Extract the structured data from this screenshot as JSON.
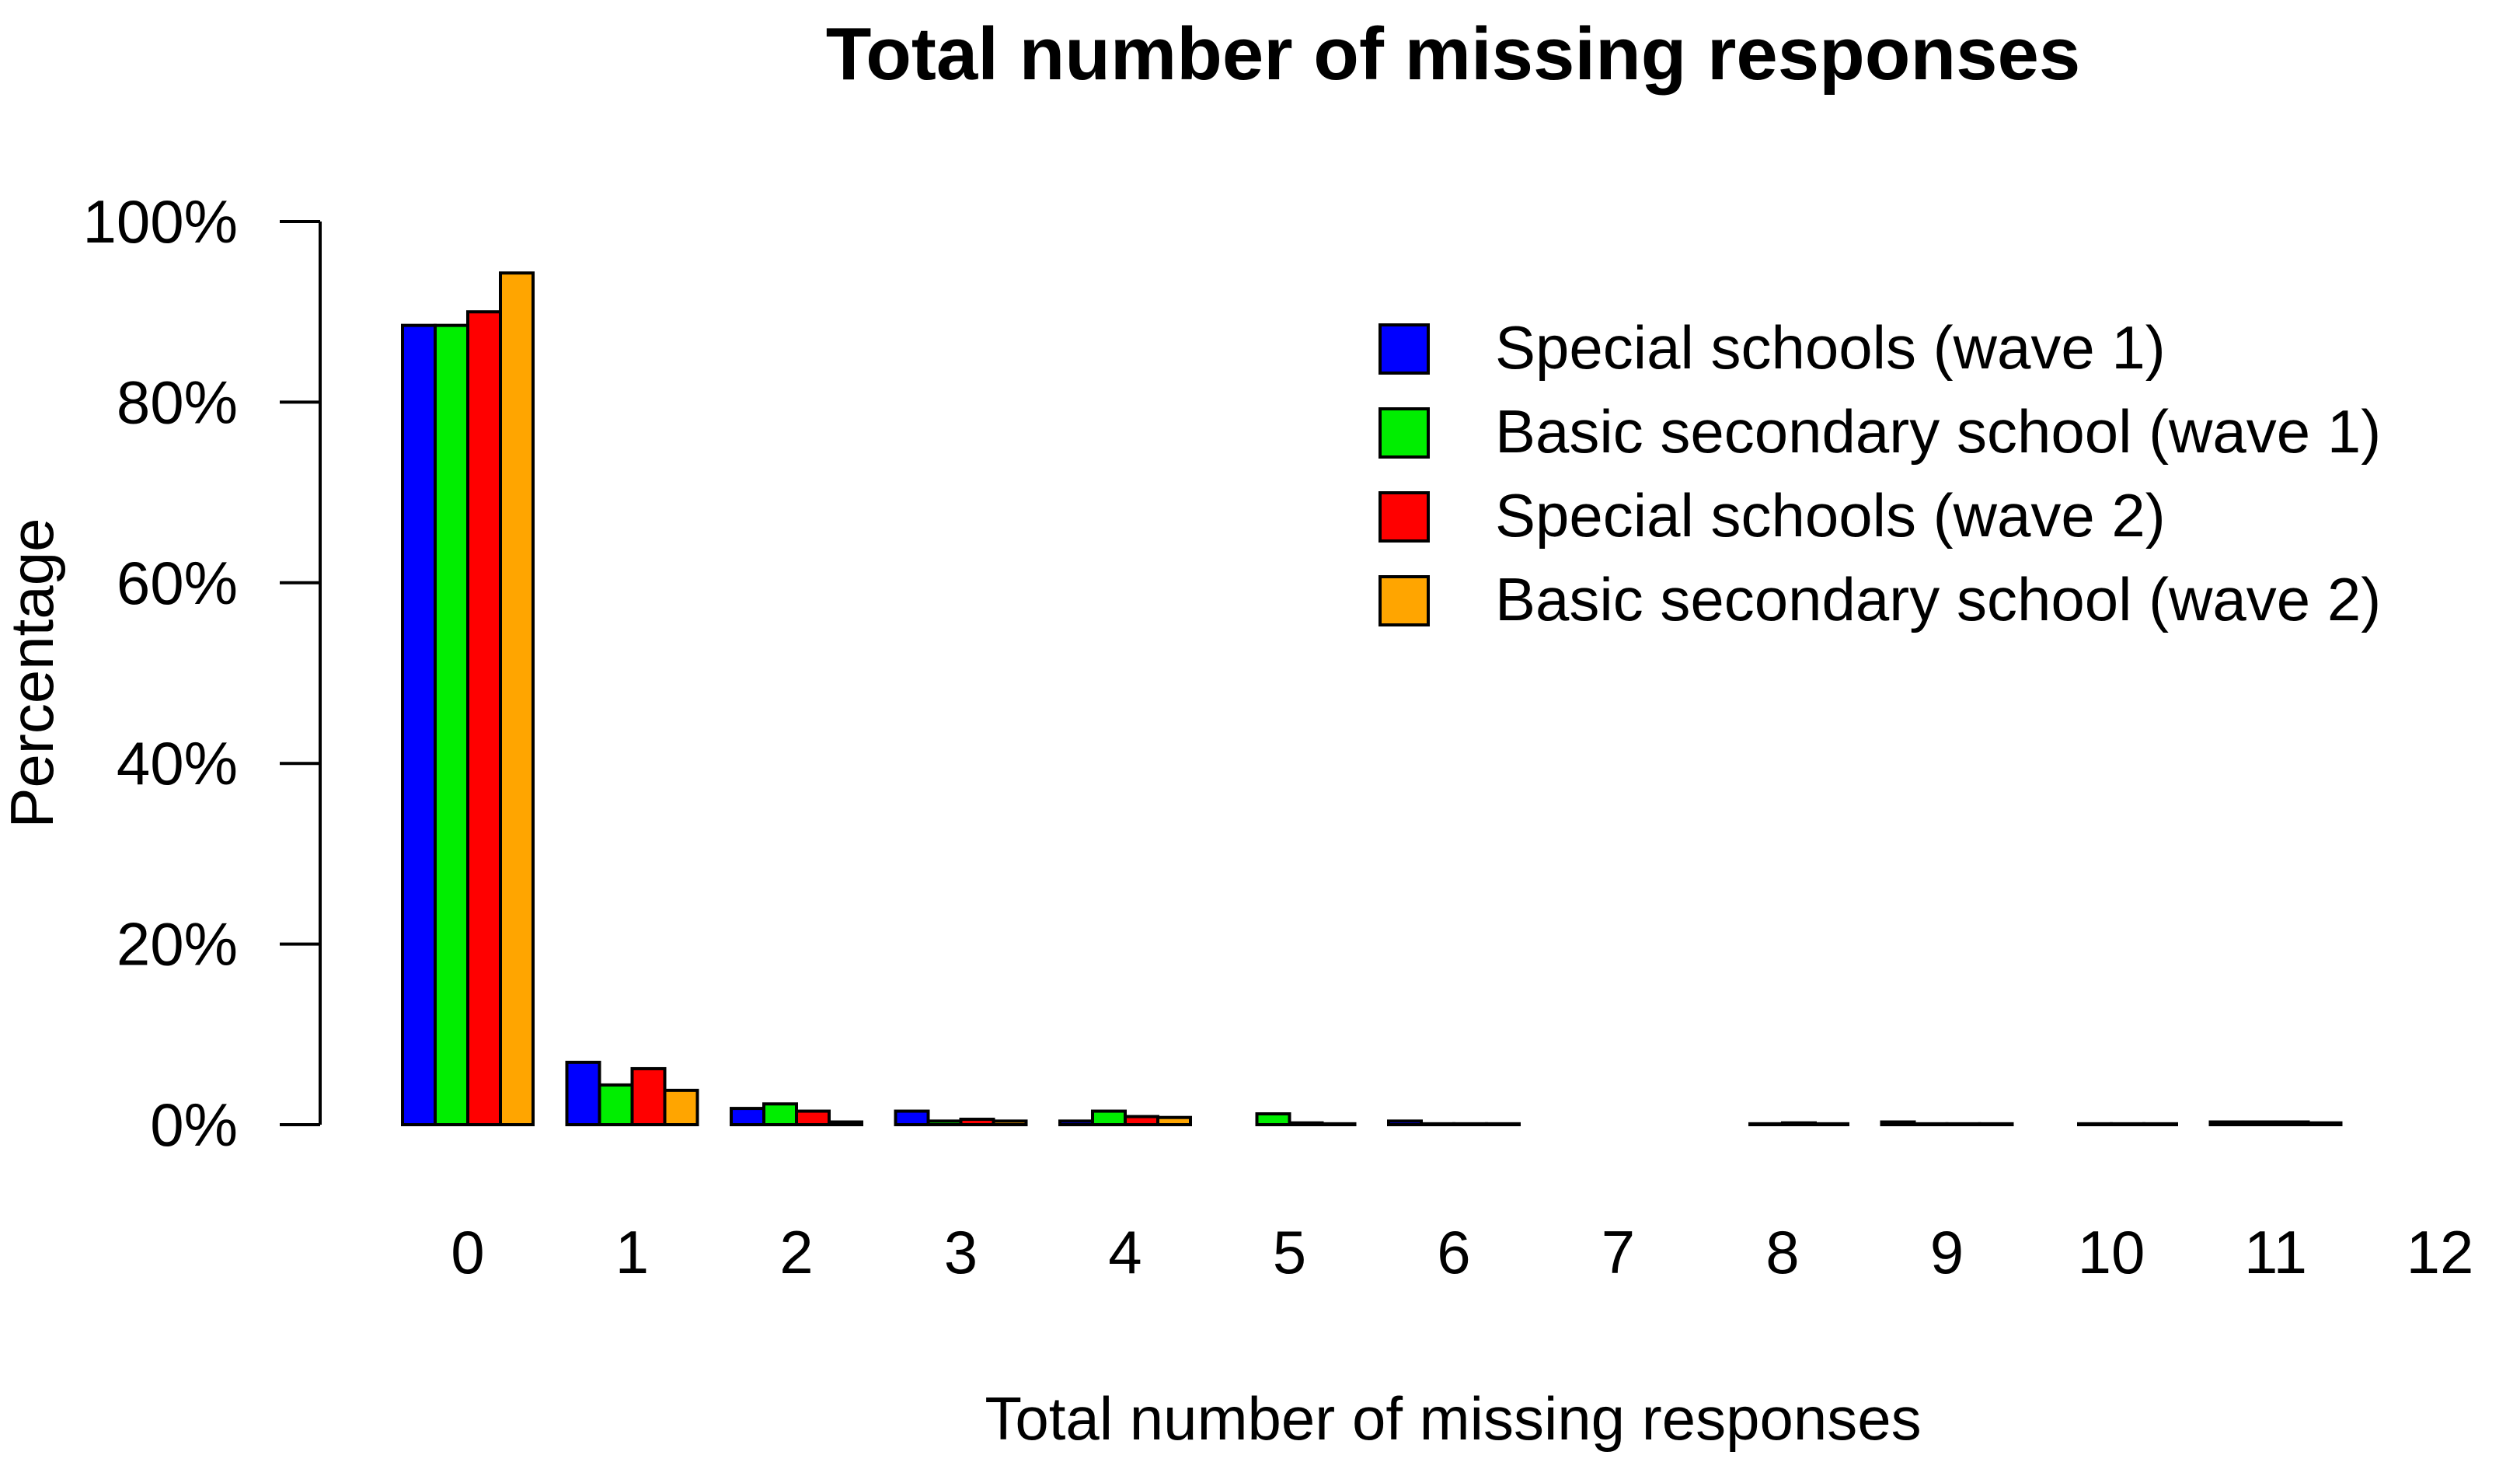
{
  "chart_data": {
    "type": "bar",
    "title": "Total number of missing responses",
    "xlabel": "Total number of missing responses",
    "ylabel": "Percentage",
    "ylim": [
      0,
      100
    ],
    "yticks": [
      0,
      20,
      40,
      60,
      80,
      100
    ],
    "ytick_labels": [
      "0%",
      "20%",
      "40%",
      "60%",
      "80%",
      "100%"
    ],
    "categories": [
      "0",
      "1",
      "2",
      "3",
      "4",
      "5",
      "6",
      "7",
      "8",
      "9",
      "10",
      "11",
      "12"
    ],
    "series": [
      {
        "name": "Special schools (wave 1)",
        "color": "#0000ff",
        "values": [
          88.5,
          6.9,
          1.8,
          1.5,
          0.4,
          0.0,
          0.4,
          0.0,
          0.0,
          0.3,
          0.0,
          0.3,
          0.0
        ]
      },
      {
        "name": "Basic secondary school (wave 1)",
        "color": "#00ee00",
        "values": [
          88.5,
          4.4,
          2.3,
          0.4,
          1.5,
          1.2,
          0.1,
          0.0,
          0.1,
          0.1,
          0.1,
          0.3,
          0.0
        ]
      },
      {
        "name": "Special schools (wave 2)",
        "color": "#ff0000",
        "values": [
          90.0,
          6.2,
          1.5,
          0.6,
          0.9,
          0.2,
          0.1,
          0.0,
          0.2,
          0.1,
          0.1,
          0.3,
          0.0
        ]
      },
      {
        "name": "Basic secondary school (wave 2)",
        "color": "#ffa500",
        "values": [
          94.3,
          3.8,
          0.3,
          0.4,
          0.8,
          0.1,
          0.1,
          0.0,
          0.1,
          0.1,
          0.1,
          0.2,
          0.0
        ]
      }
    ],
    "legend_position": "top-right",
    "grid": false
  }
}
